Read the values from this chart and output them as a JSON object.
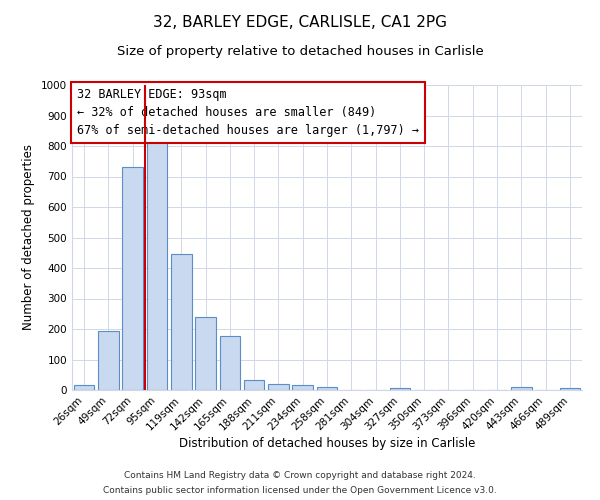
{
  "title": "32, BARLEY EDGE, CARLISLE, CA1 2PG",
  "subtitle": "Size of property relative to detached houses in Carlisle",
  "xlabel": "Distribution of detached houses by size in Carlisle",
  "ylabel": "Number of detached properties",
  "categories": [
    "26sqm",
    "49sqm",
    "72sqm",
    "95sqm",
    "119sqm",
    "142sqm",
    "165sqm",
    "188sqm",
    "211sqm",
    "234sqm",
    "258sqm",
    "281sqm",
    "304sqm",
    "327sqm",
    "350sqm",
    "373sqm",
    "396sqm",
    "420sqm",
    "443sqm",
    "466sqm",
    "489sqm"
  ],
  "values": [
    15,
    195,
    730,
    825,
    445,
    238,
    178,
    32,
    20,
    15,
    10,
    0,
    0,
    8,
    0,
    0,
    0,
    0,
    10,
    0,
    8
  ],
  "bar_color": "#c9d9f0",
  "bar_edge_color": "#5b8ec4",
  "vline_color": "#cc0000",
  "annotation_line1": "32 BARLEY EDGE: 93sqm",
  "annotation_line2": "← 32% of detached houses are smaller (849)",
  "annotation_line3": "67% of semi-detached houses are larger (1,797) →",
  "box_edge_color": "#cc0000",
  "ylim": [
    0,
    1000
  ],
  "yticks": [
    0,
    100,
    200,
    300,
    400,
    500,
    600,
    700,
    800,
    900,
    1000
  ],
  "footnote1": "Contains HM Land Registry data © Crown copyright and database right 2024.",
  "footnote2": "Contains public sector information licensed under the Open Government Licence v3.0.",
  "background_color": "#ffffff",
  "grid_color": "#d0d8e8",
  "title_fontsize": 11,
  "subtitle_fontsize": 9.5,
  "axis_label_fontsize": 8.5,
  "tick_fontsize": 7.5,
  "annotation_fontsize": 8.5,
  "footnote_fontsize": 6.5
}
